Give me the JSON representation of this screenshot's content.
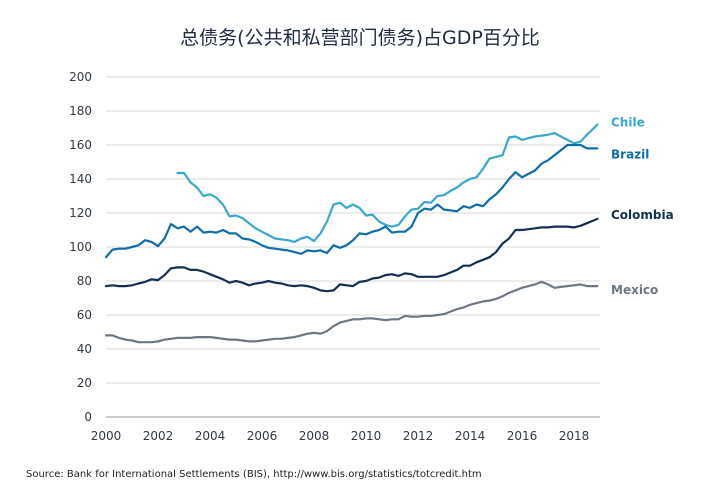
{
  "chart_data": {
    "type": "line",
    "title": "总债务(公共和私营部门债务)占GDP百分比",
    "source": "Source: Bank for International Settlements (BIS), http://www.bis.org/statistics/totcredit.htm",
    "xlim": [
      2000,
      2019
    ],
    "ylim": [
      0,
      200
    ],
    "x_ticks": [
      2000,
      2002,
      2004,
      2006,
      2008,
      2010,
      2012,
      2014,
      2016,
      2018
    ],
    "y_ticks": [
      0,
      20,
      40,
      60,
      80,
      100,
      120,
      140,
      160,
      180,
      200
    ],
    "grid": true,
    "series": [
      {
        "name": "Chile",
        "color": "#3aa7cf",
        "points": [
          [
            2002.75,
            143.5
          ],
          [
            2003.0,
            143.5
          ],
          [
            2003.25,
            138
          ],
          [
            2003.5,
            135
          ],
          [
            2003.75,
            130
          ],
          [
            2004.0,
            131
          ],
          [
            2004.25,
            129
          ],
          [
            2004.5,
            125
          ],
          [
            2004.75,
            118
          ],
          [
            2005.0,
            118.5
          ],
          [
            2005.25,
            117
          ],
          [
            2005.5,
            114
          ],
          [
            2005.75,
            111
          ],
          [
            2006.0,
            109
          ],
          [
            2006.25,
            107
          ],
          [
            2006.5,
            105
          ],
          [
            2006.75,
            104.5
          ],
          [
            2007.0,
            104
          ],
          [
            2007.25,
            103
          ],
          [
            2007.5,
            105
          ],
          [
            2007.75,
            106
          ],
          [
            2008.0,
            103.5
          ],
          [
            2008.25,
            108
          ],
          [
            2008.5,
            115
          ],
          [
            2008.75,
            125
          ],
          [
            2009.0,
            126
          ],
          [
            2009.25,
            123
          ],
          [
            2009.5,
            125
          ],
          [
            2009.75,
            123
          ],
          [
            2010.0,
            118.5
          ],
          [
            2010.25,
            119
          ],
          [
            2010.5,
            115
          ],
          [
            2010.75,
            113
          ],
          [
            2011.0,
            112
          ],
          [
            2011.25,
            113
          ],
          [
            2011.5,
            118
          ],
          [
            2011.75,
            122
          ],
          [
            2012.0,
            122.5
          ],
          [
            2012.25,
            126.5
          ],
          [
            2012.5,
            126
          ],
          [
            2012.75,
            130
          ],
          [
            2013.0,
            130.5
          ],
          [
            2013.25,
            133
          ],
          [
            2013.5,
            135
          ],
          [
            2013.75,
            138
          ],
          [
            2014.0,
            140
          ],
          [
            2014.25,
            141
          ],
          [
            2014.5,
            146
          ],
          [
            2014.75,
            152
          ],
          [
            2015.0,
            153
          ],
          [
            2015.25,
            154
          ],
          [
            2015.5,
            164.5
          ],
          [
            2015.75,
            165
          ],
          [
            2016.0,
            163
          ],
          [
            2016.25,
            164
          ],
          [
            2016.5,
            165
          ],
          [
            2016.75,
            165.5
          ],
          [
            2017.0,
            166
          ],
          [
            2017.25,
            167
          ],
          [
            2017.5,
            165
          ],
          [
            2017.75,
            163
          ],
          [
            2018.0,
            161
          ],
          [
            2018.25,
            162
          ],
          [
            2018.5,
            166
          ],
          [
            2018.9,
            172
          ]
        ]
      },
      {
        "name": "Brazil",
        "color": "#0f6ea8",
        "points": [
          [
            2000.0,
            94
          ],
          [
            2000.25,
            98.5
          ],
          [
            2000.5,
            99
          ],
          [
            2000.75,
            99
          ],
          [
            2001.0,
            100
          ],
          [
            2001.25,
            101
          ],
          [
            2001.5,
            104
          ],
          [
            2001.75,
            103
          ],
          [
            2002.0,
            100.5
          ],
          [
            2002.25,
            105
          ],
          [
            2002.5,
            113.5
          ],
          [
            2002.75,
            111
          ],
          [
            2003.0,
            112
          ],
          [
            2003.25,
            109
          ],
          [
            2003.5,
            112
          ],
          [
            2003.75,
            108.5
          ],
          [
            2004.0,
            109
          ],
          [
            2004.25,
            108.5
          ],
          [
            2004.5,
            110
          ],
          [
            2004.75,
            108
          ],
          [
            2005.0,
            108
          ],
          [
            2005.25,
            105
          ],
          [
            2005.5,
            104.5
          ],
          [
            2005.75,
            103
          ],
          [
            2006.0,
            101
          ],
          [
            2006.25,
            99.5
          ],
          [
            2006.5,
            99
          ],
          [
            2006.75,
            98.5
          ],
          [
            2007.0,
            98
          ],
          [
            2007.25,
            97
          ],
          [
            2007.5,
            96
          ],
          [
            2007.75,
            98
          ],
          [
            2008.0,
            97.5
          ],
          [
            2008.25,
            98
          ],
          [
            2008.5,
            96.5
          ],
          [
            2008.75,
            101
          ],
          [
            2009.0,
            99.5
          ],
          [
            2009.25,
            101
          ],
          [
            2009.5,
            104
          ],
          [
            2009.75,
            108
          ],
          [
            2010.0,
            107.5
          ],
          [
            2010.25,
            109
          ],
          [
            2010.5,
            110
          ],
          [
            2010.75,
            112
          ],
          [
            2011.0,
            108.5
          ],
          [
            2011.25,
            109
          ],
          [
            2011.5,
            109
          ],
          [
            2011.75,
            112
          ],
          [
            2012.0,
            120
          ],
          [
            2012.25,
            122.5
          ],
          [
            2012.5,
            122
          ],
          [
            2012.75,
            125
          ],
          [
            2013.0,
            122
          ],
          [
            2013.25,
            121.5
          ],
          [
            2013.5,
            121
          ],
          [
            2013.75,
            124
          ],
          [
            2014.0,
            123
          ],
          [
            2014.25,
            125
          ],
          [
            2014.5,
            124
          ],
          [
            2014.75,
            128
          ],
          [
            2015.0,
            131
          ],
          [
            2015.25,
            135
          ],
          [
            2015.5,
            140
          ],
          [
            2015.75,
            144
          ],
          [
            2016.0,
            141
          ],
          [
            2016.25,
            143
          ],
          [
            2016.5,
            145
          ],
          [
            2016.75,
            149
          ],
          [
            2017.0,
            151
          ],
          [
            2017.25,
            154
          ],
          [
            2017.5,
            157
          ],
          [
            2017.75,
            160
          ],
          [
            2018.0,
            160
          ],
          [
            2018.25,
            160
          ],
          [
            2018.5,
            158
          ],
          [
            2018.9,
            158
          ]
        ]
      },
      {
        "name": "Colombia",
        "color": "#132f52",
        "points": [
          [
            2000.0,
            77
          ],
          [
            2000.25,
            77.5
          ],
          [
            2000.5,
            77
          ],
          [
            2000.75,
            77
          ],
          [
            2001.0,
            77.5
          ],
          [
            2001.25,
            78.5
          ],
          [
            2001.5,
            79.5
          ],
          [
            2001.75,
            81
          ],
          [
            2002.0,
            80.5
          ],
          [
            2002.25,
            83.5
          ],
          [
            2002.5,
            87.5
          ],
          [
            2002.75,
            88
          ],
          [
            2003.0,
            88
          ],
          [
            2003.25,
            86.5
          ],
          [
            2003.5,
            86.5
          ],
          [
            2003.75,
            85.5
          ],
          [
            2004.0,
            84
          ],
          [
            2004.25,
            82.5
          ],
          [
            2004.5,
            81
          ],
          [
            2004.75,
            79
          ],
          [
            2005.0,
            80
          ],
          [
            2005.25,
            79
          ],
          [
            2005.5,
            77.5
          ],
          [
            2005.75,
            78.5
          ],
          [
            2006.0,
            79
          ],
          [
            2006.25,
            80
          ],
          [
            2006.5,
            79
          ],
          [
            2006.75,
            78.5
          ],
          [
            2007.0,
            77.5
          ],
          [
            2007.25,
            77
          ],
          [
            2007.5,
            77.5
          ],
          [
            2007.75,
            77
          ],
          [
            2008.0,
            76
          ],
          [
            2008.25,
            74.5
          ],
          [
            2008.5,
            74
          ],
          [
            2008.75,
            74.5
          ],
          [
            2009.0,
            78
          ],
          [
            2009.25,
            77.5
          ],
          [
            2009.5,
            77
          ],
          [
            2009.75,
            79.5
          ],
          [
            2010.0,
            80
          ],
          [
            2010.25,
            81.5
          ],
          [
            2010.5,
            82
          ],
          [
            2010.75,
            83.5
          ],
          [
            2011.0,
            84
          ],
          [
            2011.25,
            83
          ],
          [
            2011.5,
            84.5
          ],
          [
            2011.75,
            84
          ],
          [
            2012.0,
            82.5
          ],
          [
            2012.25,
            82.5
          ],
          [
            2012.5,
            82.5
          ],
          [
            2012.75,
            82.5
          ],
          [
            2013.0,
            83.5
          ],
          [
            2013.25,
            85
          ],
          [
            2013.5,
            86.5
          ],
          [
            2013.75,
            89
          ],
          [
            2014.0,
            89
          ],
          [
            2014.25,
            91
          ],
          [
            2014.5,
            92.5
          ],
          [
            2014.75,
            94
          ],
          [
            2015.0,
            97
          ],
          [
            2015.25,
            102
          ],
          [
            2015.5,
            105
          ],
          [
            2015.75,
            110
          ],
          [
            2016.0,
            110
          ],
          [
            2016.25,
            110.5
          ],
          [
            2016.5,
            111
          ],
          [
            2016.75,
            111.5
          ],
          [
            2017.0,
            111.5
          ],
          [
            2017.25,
            112
          ],
          [
            2017.5,
            112
          ],
          [
            2017.75,
            112
          ],
          [
            2018.0,
            111.5
          ],
          [
            2018.25,
            112.5
          ],
          [
            2018.5,
            114
          ],
          [
            2018.9,
            116.5
          ]
        ]
      },
      {
        "name": "Mexico",
        "color": "#6e7785",
        "points": [
          [
            2000.0,
            48
          ],
          [
            2000.25,
            48
          ],
          [
            2000.5,
            46.5
          ],
          [
            2000.75,
            45.5
          ],
          [
            2001.0,
            45
          ],
          [
            2001.25,
            44
          ],
          [
            2001.5,
            44
          ],
          [
            2001.75,
            44
          ],
          [
            2002.0,
            44.5
          ],
          [
            2002.25,
            45.5
          ],
          [
            2002.5,
            46
          ],
          [
            2002.75,
            46.5
          ],
          [
            2003.0,
            46.5
          ],
          [
            2003.25,
            46.5
          ],
          [
            2003.5,
            47
          ],
          [
            2003.75,
            47
          ],
          [
            2004.0,
            47
          ],
          [
            2004.25,
            46.5
          ],
          [
            2004.5,
            46
          ],
          [
            2004.75,
            45.5
          ],
          [
            2005.0,
            45.5
          ],
          [
            2005.25,
            45
          ],
          [
            2005.5,
            44.5
          ],
          [
            2005.75,
            44.5
          ],
          [
            2006.0,
            45
          ],
          [
            2006.25,
            45.5
          ],
          [
            2006.5,
            46
          ],
          [
            2006.75,
            46
          ],
          [
            2007.0,
            46.5
          ],
          [
            2007.25,
            47
          ],
          [
            2007.5,
            48
          ],
          [
            2007.75,
            49
          ],
          [
            2008.0,
            49.5
          ],
          [
            2008.25,
            49
          ],
          [
            2008.5,
            50.5
          ],
          [
            2008.75,
            53.5
          ],
          [
            2009.0,
            55.5
          ],
          [
            2009.25,
            56.5
          ],
          [
            2009.5,
            57.5
          ],
          [
            2009.75,
            57.5
          ],
          [
            2010.0,
            58
          ],
          [
            2010.25,
            58
          ],
          [
            2010.5,
            57.5
          ],
          [
            2010.75,
            57
          ],
          [
            2011.0,
            57.5
          ],
          [
            2011.25,
            57.5
          ],
          [
            2011.5,
            59.5
          ],
          [
            2011.75,
            59
          ],
          [
            2012.0,
            59
          ],
          [
            2012.25,
            59.5
          ],
          [
            2012.5,
            59.5
          ],
          [
            2012.75,
            60
          ],
          [
            2013.0,
            60.5
          ],
          [
            2013.25,
            62
          ],
          [
            2013.5,
            63.5
          ],
          [
            2013.75,
            64.5
          ],
          [
            2014.0,
            66
          ],
          [
            2014.25,
            67
          ],
          [
            2014.5,
            68
          ],
          [
            2014.75,
            68.5
          ],
          [
            2015.0,
            69.5
          ],
          [
            2015.25,
            71
          ],
          [
            2015.5,
            73
          ],
          [
            2015.75,
            74.5
          ],
          [
            2016.0,
            76
          ],
          [
            2016.25,
            77
          ],
          [
            2016.5,
            78
          ],
          [
            2016.75,
            79.5
          ],
          [
            2017.0,
            78
          ],
          [
            2017.25,
            76
          ],
          [
            2017.5,
            76.5
          ],
          [
            2017.75,
            77
          ],
          [
            2018.0,
            77.5
          ],
          [
            2018.25,
            78
          ],
          [
            2018.5,
            77
          ],
          [
            2018.9,
            77
          ]
        ]
      }
    ]
  }
}
